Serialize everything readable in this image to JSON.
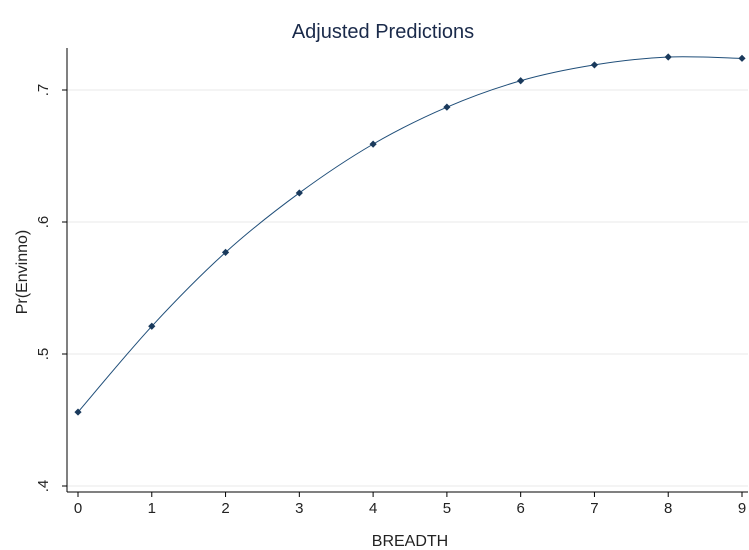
{
  "chart_data": {
    "type": "line",
    "title": "Adjusted Predictions",
    "xlabel": "BREADTH",
    "ylabel": "Pr(Envinno)",
    "x": [
      0,
      1,
      2,
      3,
      4,
      5,
      6,
      7,
      8,
      9
    ],
    "series": [
      {
        "values": [
          0.456,
          0.521,
          0.577,
          0.622,
          0.659,
          0.687,
          0.707,
          0.719,
          0.725,
          0.724
        ]
      }
    ],
    "xticks": [
      "0",
      "1",
      "2",
      "3",
      "4",
      "5",
      "6",
      "7",
      "8",
      "9"
    ],
    "yticks": [
      ".4",
      ".5",
      ".6",
      ".7"
    ],
    "xlim": [
      0,
      9
    ],
    "ylim": [
      0.4,
      0.7
    ],
    "grid": true,
    "colors": {
      "line": "#1f4e79",
      "marker": "#1a3a5c",
      "grid": "#eaeaea",
      "title": "#1a2a4a"
    }
  }
}
